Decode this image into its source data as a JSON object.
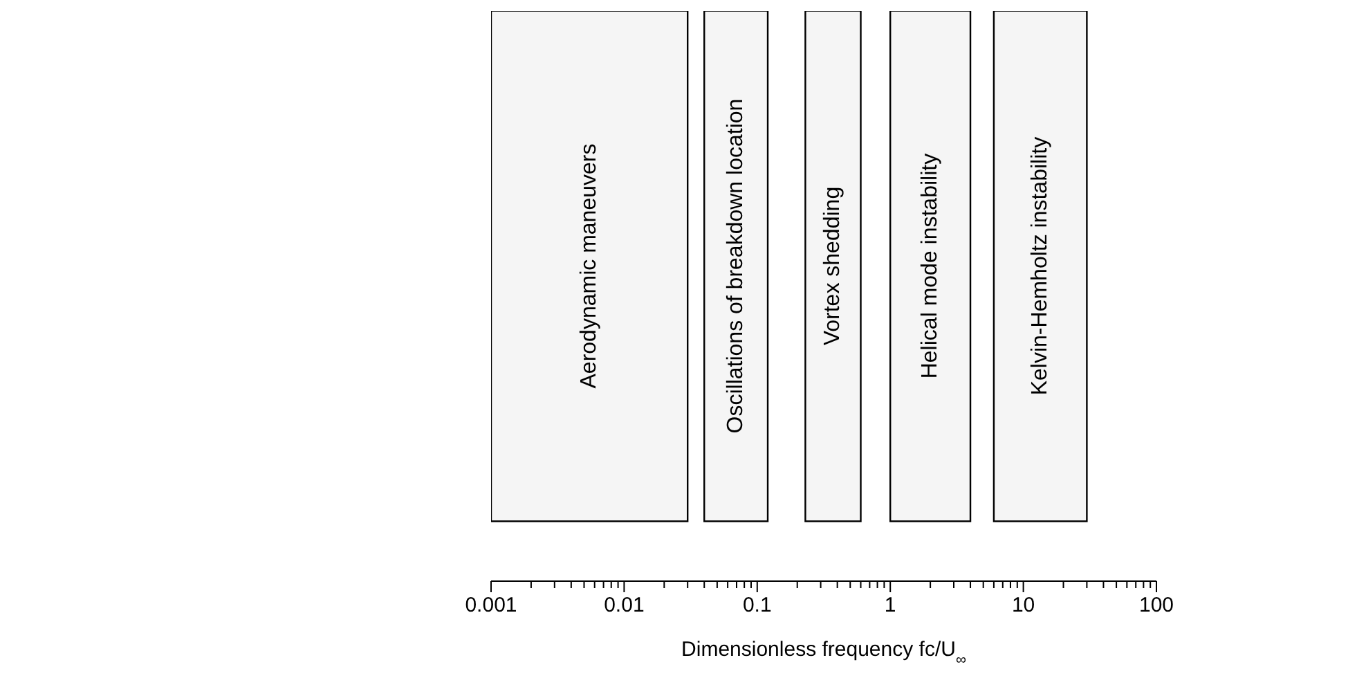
{
  "chart_data": {
    "type": "bar",
    "orientation": "horizontal",
    "xlabel": "Dimensionless frequency fc/U$_{∞}$",
    "log": "x",
    "xlim": [
      0.001,
      100
    ],
    "xticks": [
      0.001,
      0.01,
      0.1,
      1,
      10,
      100
    ],
    "categories": [
      null
    ],
    "series": [
      {
        "name": "Aerodynamic maneuvers",
        "color": "#f5f5f5",
        "base": [
          0.001
        ],
        "values": [
          0.029
        ]
      },
      {
        "name": "Oscillations of breakdown location",
        "color": "#f5f5f5",
        "base": [
          0.04
        ],
        "values": [
          0.08
        ]
      },
      {
        "name": "Vortex shedding",
        "color": "#f5f5f5",
        "base": [
          0.23
        ],
        "values": [
          0.37
        ]
      },
      {
        "name": "Helical mode instability",
        "color": "#f5f5f5",
        "base": [
          1
        ],
        "values": [
          3
        ]
      },
      {
        "name": "Kelvin-Hemholtz instability",
        "color": "#f5f5f5",
        "base": [
          6
        ],
        "values": [
          24
        ]
      }
    ]
  }
}
